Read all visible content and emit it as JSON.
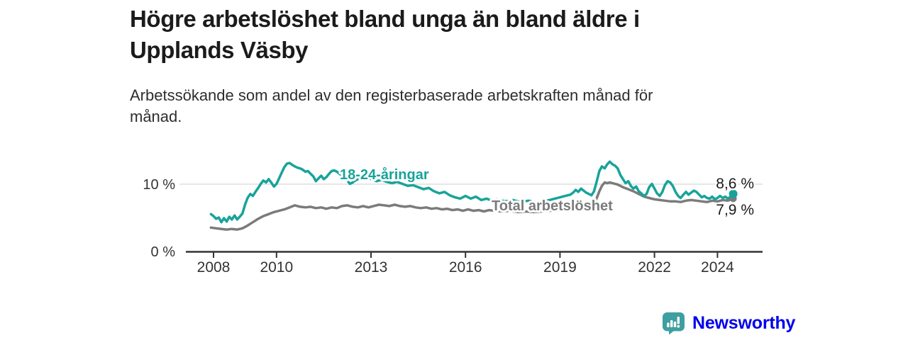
{
  "header": {
    "title_lines": [
      "Högre arbetslöshet bland unga än bland äldre i",
      "Upplands Väsby"
    ],
    "subtitle_lines": [
      "Arbetssökande som andel av den registerbaserade arbetskraften månad för",
      "månad."
    ]
  },
  "footer": {
    "brand": "Newsworthy",
    "brand_color": "#3f9fa0",
    "logo_icon": "newsworthy-speech-bubble-bar-chart-icon"
  },
  "chart_data": {
    "type": "line",
    "title": "Högre arbetslöshet bland unga än bland äldre i Upplands Väsby",
    "subtitle": "Arbetssökande som andel av den registerbaserade arbetskraften månad för månad.",
    "unit": "%",
    "xlim": [
      2007.1,
      2025.4
    ],
    "ylim": [
      0,
      14
    ],
    "grid": "single horizontal gridline at 10 %",
    "legend_position": "inline-labels-on-lines",
    "x_ticks": [
      2008,
      2010,
      2013,
      2016,
      2019,
      2022,
      2024
    ],
    "y_ticks": [
      {
        "value": 0,
        "label": "0 %"
      },
      {
        "value": 10,
        "label": "10 %"
      }
    ],
    "series": [
      {
        "name": "18-24-åringar",
        "color": "#18a39a",
        "end_value": 8.6,
        "end_label": "8,6 %",
        "points": [
          [
            2007.92,
            5.6
          ],
          [
            2008.0,
            5.3
          ],
          [
            2008.08,
            4.9
          ],
          [
            2008.17,
            5.1
          ],
          [
            2008.25,
            4.4
          ],
          [
            2008.33,
            5.0
          ],
          [
            2008.42,
            4.5
          ],
          [
            2008.5,
            5.2
          ],
          [
            2008.58,
            4.8
          ],
          [
            2008.67,
            5.4
          ],
          [
            2008.75,
            4.8
          ],
          [
            2008.83,
            5.2
          ],
          [
            2008.92,
            5.7
          ],
          [
            2009.0,
            7.0
          ],
          [
            2009.08,
            8.0
          ],
          [
            2009.17,
            8.6
          ],
          [
            2009.25,
            8.3
          ],
          [
            2009.33,
            8.9
          ],
          [
            2009.42,
            9.5
          ],
          [
            2009.5,
            10.1
          ],
          [
            2009.58,
            10.6
          ],
          [
            2009.67,
            10.3
          ],
          [
            2009.75,
            10.8
          ],
          [
            2009.83,
            10.3
          ],
          [
            2009.92,
            9.7
          ],
          [
            2010.0,
            10.1
          ],
          [
            2010.08,
            10.9
          ],
          [
            2010.17,
            11.8
          ],
          [
            2010.25,
            12.6
          ],
          [
            2010.33,
            13.1
          ],
          [
            2010.42,
            13.2
          ],
          [
            2010.5,
            12.9
          ],
          [
            2010.58,
            12.7
          ],
          [
            2010.67,
            12.5
          ],
          [
            2010.75,
            12.4
          ],
          [
            2010.83,
            12.2
          ],
          [
            2010.92,
            11.9
          ],
          [
            2011.0,
            12.0
          ],
          [
            2011.08,
            11.6
          ],
          [
            2011.17,
            11.2
          ],
          [
            2011.25,
            10.5
          ],
          [
            2011.33,
            10.9
          ],
          [
            2011.42,
            11.3
          ],
          [
            2011.5,
            10.8
          ],
          [
            2011.58,
            11.1
          ],
          [
            2011.67,
            11.6
          ],
          [
            2011.75,
            12.0
          ],
          [
            2011.83,
            12.1
          ],
          [
            2011.92,
            11.9
          ],
          [
            2012.0,
            11.6
          ],
          [
            2012.17,
            11.0
          ],
          [
            2012.25,
            10.6
          ],
          [
            2012.33,
            10.1
          ],
          [
            2012.42,
            10.3
          ],
          [
            2012.5,
            10.6
          ],
          [
            2012.67,
            11.0
          ],
          [
            2012.75,
            11.4
          ],
          [
            2012.83,
            11.2
          ],
          [
            2012.92,
            11.0
          ],
          [
            2013.0,
            10.8
          ],
          [
            2013.17,
            10.5
          ],
          [
            2013.33,
            10.7
          ],
          [
            2013.5,
            10.4
          ],
          [
            2013.67,
            10.2
          ],
          [
            2013.83,
            10.4
          ],
          [
            2014.0,
            10.1
          ],
          [
            2014.17,
            9.8
          ],
          [
            2014.33,
            9.9
          ],
          [
            2014.5,
            9.6
          ],
          [
            2014.67,
            9.3
          ],
          [
            2014.83,
            9.5
          ],
          [
            2015.0,
            9.0
          ],
          [
            2015.17,
            8.7
          ],
          [
            2015.33,
            8.9
          ],
          [
            2015.5,
            8.4
          ],
          [
            2015.67,
            8.1
          ],
          [
            2015.83,
            7.9
          ],
          [
            2016.0,
            8.3
          ],
          [
            2016.17,
            7.9
          ],
          [
            2016.33,
            8.2
          ],
          [
            2016.5,
            7.7
          ],
          [
            2016.67,
            7.9
          ],
          [
            2016.83,
            7.6
          ],
          [
            2017.0,
            7.8
          ],
          [
            2017.25,
            7.5
          ],
          [
            2017.5,
            7.7
          ],
          [
            2017.75,
            7.4
          ],
          [
            2018.0,
            7.6
          ],
          [
            2018.25,
            7.3
          ],
          [
            2018.5,
            7.5
          ],
          [
            2018.75,
            7.8
          ],
          [
            2019.0,
            8.1
          ],
          [
            2019.17,
            8.3
          ],
          [
            2019.33,
            8.5
          ],
          [
            2019.42,
            8.8
          ],
          [
            2019.5,
            9.2
          ],
          [
            2019.58,
            8.9
          ],
          [
            2019.67,
            9.4
          ],
          [
            2019.75,
            9.1
          ],
          [
            2019.83,
            8.8
          ],
          [
            2019.92,
            8.6
          ],
          [
            2020.0,
            8.4
          ],
          [
            2020.08,
            9.0
          ],
          [
            2020.17,
            10.5
          ],
          [
            2020.25,
            12.0
          ],
          [
            2020.33,
            12.7
          ],
          [
            2020.42,
            12.4
          ],
          [
            2020.5,
            13.0
          ],
          [
            2020.58,
            13.4
          ],
          [
            2020.67,
            13.0
          ],
          [
            2020.75,
            12.8
          ],
          [
            2020.83,
            12.4
          ],
          [
            2020.92,
            11.4
          ],
          [
            2021.0,
            10.8
          ],
          [
            2021.08,
            10.2
          ],
          [
            2021.17,
            10.5
          ],
          [
            2021.25,
            9.8
          ],
          [
            2021.33,
            9.4
          ],
          [
            2021.42,
            9.7
          ],
          [
            2021.5,
            9.0
          ],
          [
            2021.58,
            8.7
          ],
          [
            2021.67,
            8.3
          ],
          [
            2021.75,
            8.6
          ],
          [
            2021.83,
            9.6
          ],
          [
            2021.92,
            10.1
          ],
          [
            2022.0,
            9.4
          ],
          [
            2022.08,
            8.7
          ],
          [
            2022.17,
            8.3
          ],
          [
            2022.25,
            8.9
          ],
          [
            2022.33,
            9.9
          ],
          [
            2022.42,
            10.5
          ],
          [
            2022.5,
            10.3
          ],
          [
            2022.58,
            9.8
          ],
          [
            2022.67,
            8.9
          ],
          [
            2022.75,
            8.3
          ],
          [
            2022.83,
            8.0
          ],
          [
            2022.92,
            8.5
          ],
          [
            2023.0,
            8.9
          ],
          [
            2023.08,
            8.5
          ],
          [
            2023.17,
            8.8
          ],
          [
            2023.25,
            9.1
          ],
          [
            2023.33,
            8.9
          ],
          [
            2023.42,
            8.5
          ],
          [
            2023.5,
            8.1
          ],
          [
            2023.58,
            8.3
          ],
          [
            2023.67,
            8.0
          ],
          [
            2023.75,
            7.9
          ],
          [
            2023.83,
            8.2
          ],
          [
            2023.92,
            7.8
          ],
          [
            2024.0,
            8.0
          ],
          [
            2024.08,
            8.3
          ],
          [
            2024.17,
            8.0
          ],
          [
            2024.25,
            8.2
          ],
          [
            2024.33,
            7.9
          ],
          [
            2024.42,
            8.2
          ],
          [
            2024.5,
            8.6
          ]
        ]
      },
      {
        "name": "Total arbetslöshet",
        "color": "#7b7b7b",
        "end_value": 7.9,
        "end_label": "7,9 %",
        "points": [
          [
            2007.92,
            3.6
          ],
          [
            2008.08,
            3.5
          ],
          [
            2008.25,
            3.4
          ],
          [
            2008.42,
            3.3
          ],
          [
            2008.58,
            3.4
          ],
          [
            2008.75,
            3.3
          ],
          [
            2008.92,
            3.5
          ],
          [
            2009.08,
            3.9
          ],
          [
            2009.25,
            4.4
          ],
          [
            2009.42,
            4.9
          ],
          [
            2009.58,
            5.3
          ],
          [
            2009.75,
            5.6
          ],
          [
            2009.92,
            5.9
          ],
          [
            2010.08,
            6.1
          ],
          [
            2010.25,
            6.3
          ],
          [
            2010.42,
            6.6
          ],
          [
            2010.58,
            6.9
          ],
          [
            2010.75,
            6.7
          ],
          [
            2010.92,
            6.6
          ],
          [
            2011.08,
            6.7
          ],
          [
            2011.25,
            6.5
          ],
          [
            2011.42,
            6.6
          ],
          [
            2011.58,
            6.4
          ],
          [
            2011.75,
            6.6
          ],
          [
            2011.92,
            6.5
          ],
          [
            2012.08,
            6.8
          ],
          [
            2012.25,
            6.9
          ],
          [
            2012.42,
            6.7
          ],
          [
            2012.58,
            6.6
          ],
          [
            2012.75,
            6.8
          ],
          [
            2012.92,
            6.6
          ],
          [
            2013.08,
            6.8
          ],
          [
            2013.25,
            7.0
          ],
          [
            2013.42,
            6.9
          ],
          [
            2013.58,
            6.8
          ],
          [
            2013.75,
            7.0
          ],
          [
            2013.92,
            6.8
          ],
          [
            2014.08,
            6.7
          ],
          [
            2014.25,
            6.8
          ],
          [
            2014.42,
            6.6
          ],
          [
            2014.58,
            6.5
          ],
          [
            2014.75,
            6.6
          ],
          [
            2014.92,
            6.4
          ],
          [
            2015.08,
            6.5
          ],
          [
            2015.25,
            6.3
          ],
          [
            2015.42,
            6.4
          ],
          [
            2015.58,
            6.2
          ],
          [
            2015.75,
            6.3
          ],
          [
            2015.92,
            6.1
          ],
          [
            2016.08,
            6.3
          ],
          [
            2016.25,
            6.1
          ],
          [
            2016.42,
            6.2
          ],
          [
            2016.58,
            6.0
          ],
          [
            2016.75,
            6.2
          ],
          [
            2016.92,
            6.1
          ],
          [
            2017.17,
            6.0
          ],
          [
            2017.42,
            6.1
          ],
          [
            2017.67,
            5.9
          ],
          [
            2017.92,
            6.0
          ],
          [
            2018.17,
            5.9
          ],
          [
            2018.42,
            6.0
          ],
          [
            2018.67,
            6.1
          ],
          [
            2018.92,
            6.2
          ],
          [
            2019.17,
            6.3
          ],
          [
            2019.42,
            6.5
          ],
          [
            2019.67,
            6.6
          ],
          [
            2019.92,
            6.8
          ],
          [
            2020.08,
            7.2
          ],
          [
            2020.17,
            8.0
          ],
          [
            2020.25,
            9.0
          ],
          [
            2020.33,
            9.8
          ],
          [
            2020.42,
            10.3
          ],
          [
            2020.5,
            10.2
          ],
          [
            2020.58,
            10.3
          ],
          [
            2020.67,
            10.2
          ],
          [
            2020.75,
            10.1
          ],
          [
            2020.83,
            10.0
          ],
          [
            2020.92,
            9.8
          ],
          [
            2021.0,
            9.6
          ],
          [
            2021.17,
            9.3
          ],
          [
            2021.33,
            9.0
          ],
          [
            2021.5,
            8.6
          ],
          [
            2021.67,
            8.2
          ],
          [
            2021.83,
            8.0
          ],
          [
            2022.0,
            7.8
          ],
          [
            2022.17,
            7.7
          ],
          [
            2022.33,
            7.6
          ],
          [
            2022.5,
            7.5
          ],
          [
            2022.67,
            7.5
          ],
          [
            2022.83,
            7.4
          ],
          [
            2023.0,
            7.6
          ],
          [
            2023.17,
            7.7
          ],
          [
            2023.33,
            7.6
          ],
          [
            2023.5,
            7.5
          ],
          [
            2023.67,
            7.4
          ],
          [
            2023.83,
            7.6
          ],
          [
            2024.0,
            7.5
          ],
          [
            2024.17,
            7.7
          ],
          [
            2024.33,
            7.6
          ],
          [
            2024.5,
            7.9
          ]
        ]
      }
    ]
  }
}
